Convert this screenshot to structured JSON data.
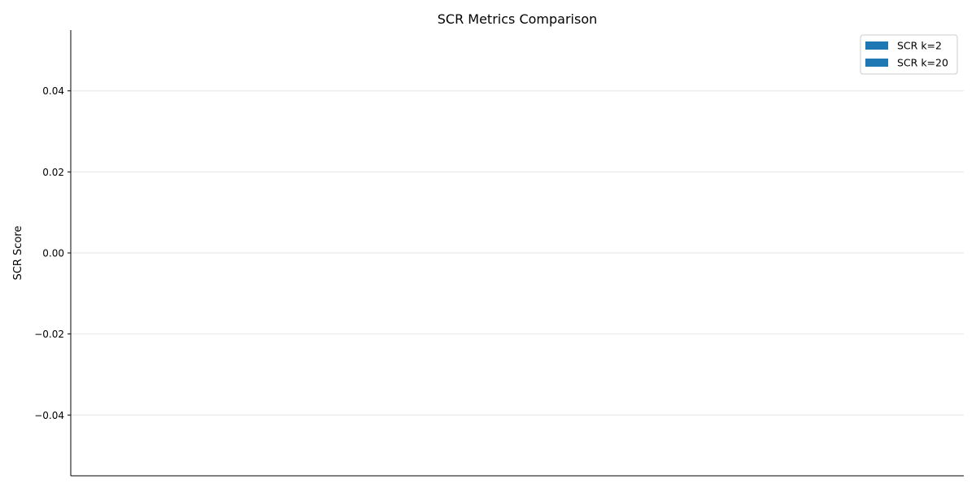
{
  "chart_data": {
    "type": "bar",
    "title": "SCR Metrics Comparison",
    "xlabel": "",
    "ylabel": "SCR Score",
    "categories": [],
    "series": [
      {
        "name": "SCR k=2",
        "values": [],
        "color": "#1f77b4"
      },
      {
        "name": "SCR k=20",
        "values": [],
        "color": "#1f77b4"
      }
    ],
    "ylim": [
      -0.055,
      0.055
    ],
    "yticks": [
      -0.04,
      -0.02,
      0.0,
      0.02,
      0.04
    ],
    "ytick_labels": [
      "−0.04",
      "−0.02",
      "0.00",
      "0.02",
      "0.04"
    ],
    "grid": "y-axis, light gray",
    "legend_position": "top-right"
  }
}
